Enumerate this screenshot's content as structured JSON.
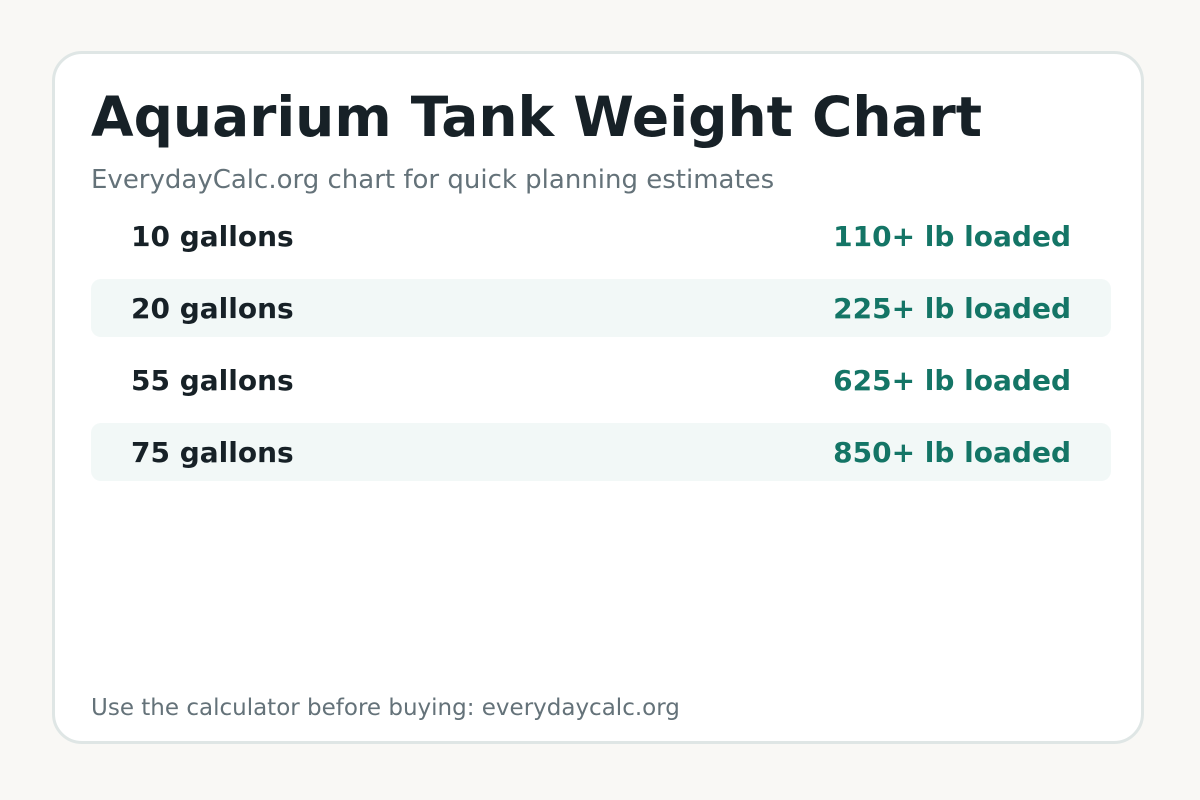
{
  "header": {
    "title": "Aquarium Tank Weight Chart",
    "subtitle": "EverydayCalc.org chart for quick planning estimates"
  },
  "rows": [
    {
      "label": "10 gallons",
      "value": "110+ lb loaded"
    },
    {
      "label": "20 gallons",
      "value": "225+ lb loaded"
    },
    {
      "label": "55 gallons",
      "value": "625+ lb loaded"
    },
    {
      "label": "75 gallons",
      "value": "850+ lb loaded"
    }
  ],
  "footer": {
    "text": "Use the calculator before buying: everydaycalc.org"
  },
  "colors": {
    "page_background": "#f9f8f5",
    "card_background": "#ffffff",
    "card_border": "#dfe6e5",
    "title_text": "#172127",
    "muted_text": "#647279",
    "accent_value": "#147566",
    "row_shade": "#f2f8f7"
  }
}
